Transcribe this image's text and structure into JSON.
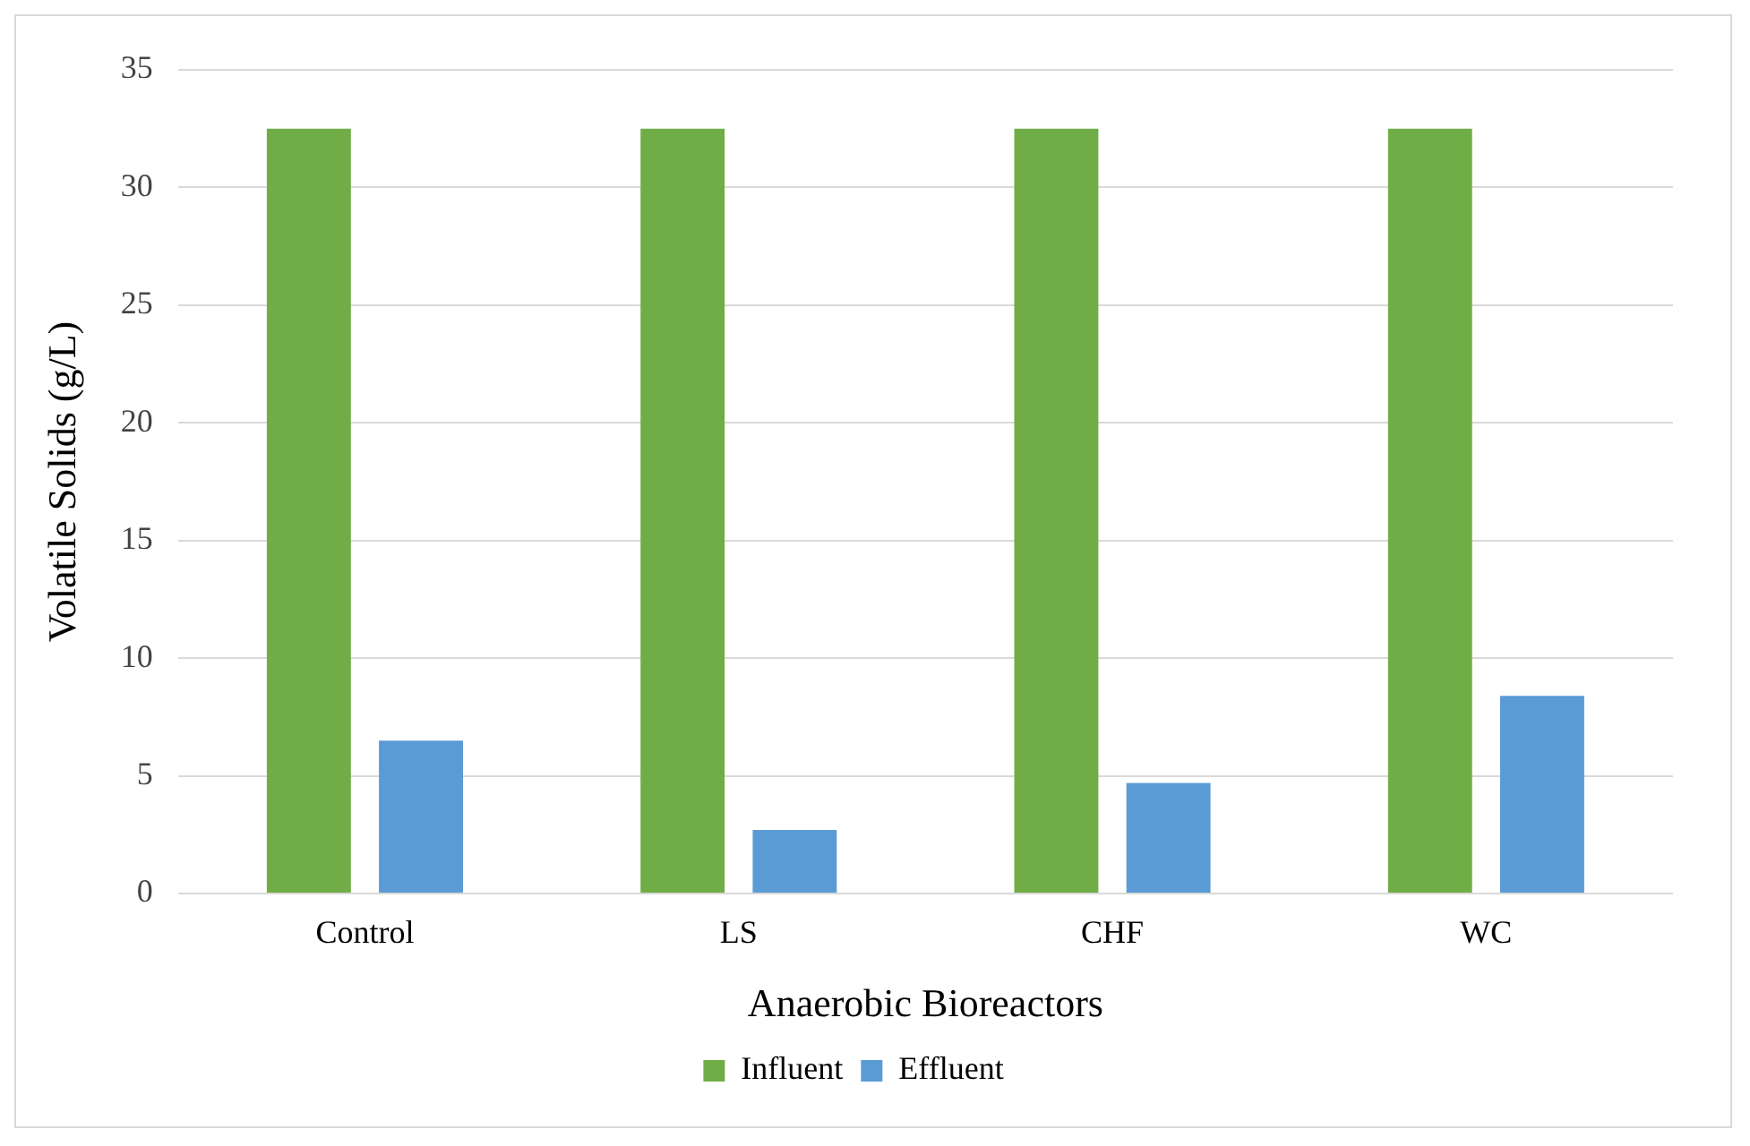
{
  "chart_data": {
    "type": "bar",
    "xlabel": "Anaerobic Bioreactors",
    "ylabel": "Volatile Solids (g/L)",
    "categories": [
      "Control",
      "LS",
      "CHF",
      "WC"
    ],
    "series": [
      {
        "name": "Influent",
        "color": "#70ad47",
        "values": [
          32.5,
          32.5,
          32.5,
          32.5
        ]
      },
      {
        "name": "Effluent",
        "color": "#5b9bd5",
        "values": [
          6.5,
          2.7,
          4.7,
          8.4
        ]
      }
    ],
    "ylim": [
      0,
      35
    ],
    "yticks": [
      0,
      5,
      10,
      15,
      20,
      25,
      30,
      35
    ],
    "grid": "y",
    "legend": "bottom"
  }
}
